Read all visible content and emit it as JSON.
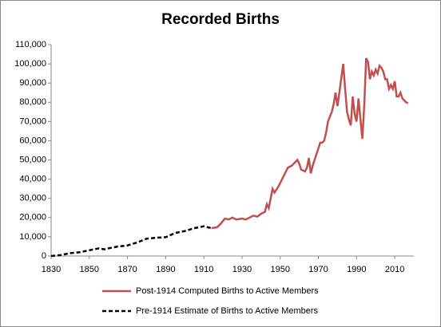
{
  "chart_data": {
    "type": "line",
    "title": "Recorded Births",
    "xlim": [
      1830,
      2020
    ],
    "xticks": [
      1830,
      1850,
      1870,
      1890,
      1910,
      1930,
      1950,
      1970,
      1990,
      2010
    ],
    "ylim": [
      0,
      110000
    ],
    "yticks": [
      0,
      {
        "value": 10000,
        "label": "10,000"
      },
      {
        "value": 20000,
        "label": "20,000"
      },
      {
        "value": 30000,
        "label": "30,000"
      },
      {
        "value": 40000,
        "label": "40,000"
      },
      {
        "value": 50000,
        "label": "50,000"
      },
      {
        "value": 60000,
        "label": "60,000"
      },
      {
        "value": 70000,
        "label": "70,000"
      },
      {
        "value": 80000,
        "label": "80,000"
      },
      {
        "value": 90000,
        "label": "90,000"
      },
      {
        "value": 100000,
        "label": "100,000"
      },
      {
        "value": 110000,
        "label": "110,000"
      }
    ],
    "grid": false,
    "legend": "bottom",
    "series": [
      {
        "name": "Post-1914 Computed Births to Active Members",
        "color": "#c0504d",
        "dashed": false,
        "x": [
          1914,
          1917,
          1919,
          1921,
          1923,
          1925,
          1927,
          1930,
          1932,
          1934,
          1936,
          1938,
          1940,
          1942,
          1943,
          1944,
          1946,
          1947,
          1949,
          1952,
          1954,
          1956,
          1958,
          1959,
          1960,
          1961,
          1962,
          1963,
          1964,
          1965,
          1966,
          1967,
          1968,
          1970,
          1971,
          1972,
          1973,
          1974,
          1975,
          1977,
          1978,
          1979,
          1980,
          1981,
          1983,
          1984,
          1985,
          1986,
          1987,
          1988,
          1989,
          1990,
          1991,
          1993,
          1994,
          1995,
          1996,
          1997,
          1998,
          1999,
          2000,
          2001,
          2002,
          2003,
          2004,
          2005,
          2006,
          2007,
          2008,
          2009,
          2010,
          2011,
          2012,
          2013,
          2014,
          2015,
          2016,
          2017
        ],
        "values": [
          14500,
          15000,
          17000,
          19500,
          19000,
          20000,
          19000,
          19500,
          19000,
          20000,
          21000,
          20500,
          22000,
          23000,
          27000,
          25000,
          35000,
          33000,
          36000,
          42000,
          46000,
          47000,
          49000,
          50000,
          48000,
          45000,
          44500,
          44000,
          46000,
          51000,
          43000,
          47000,
          50000,
          56000,
          59000,
          59000,
          60000,
          64000,
          70000,
          75000,
          79000,
          85000,
          78000,
          85000,
          100000,
          87000,
          75000,
          71000,
          68000,
          83000,
          74000,
          70000,
          82000,
          61000,
          78000,
          103000,
          101000,
          92000,
          96000,
          94000,
          97000,
          95000,
          99000,
          98000,
          96000,
          92000,
          92000,
          87000,
          89000,
          87000,
          91000,
          83000,
          83000,
          85000,
          82000,
          81000,
          80000,
          79500
        ]
      },
      {
        "name": "Pre-1914 Estimate of Births to Active Members",
        "color": "#000000",
        "dashed": true,
        "x": [
          1830,
          1835,
          1840,
          1845,
          1850,
          1855,
          1858,
          1860,
          1865,
          1870,
          1875,
          1880,
          1885,
          1890,
          1895,
          1900,
          1905,
          1910,
          1914
        ],
        "values": [
          0,
          500,
          1500,
          2000,
          3000,
          4000,
          3500,
          4000,
          5000,
          5500,
          7000,
          9000,
          9500,
          9800,
          12000,
          13000,
          14500,
          15500,
          14500
        ]
      }
    ]
  }
}
